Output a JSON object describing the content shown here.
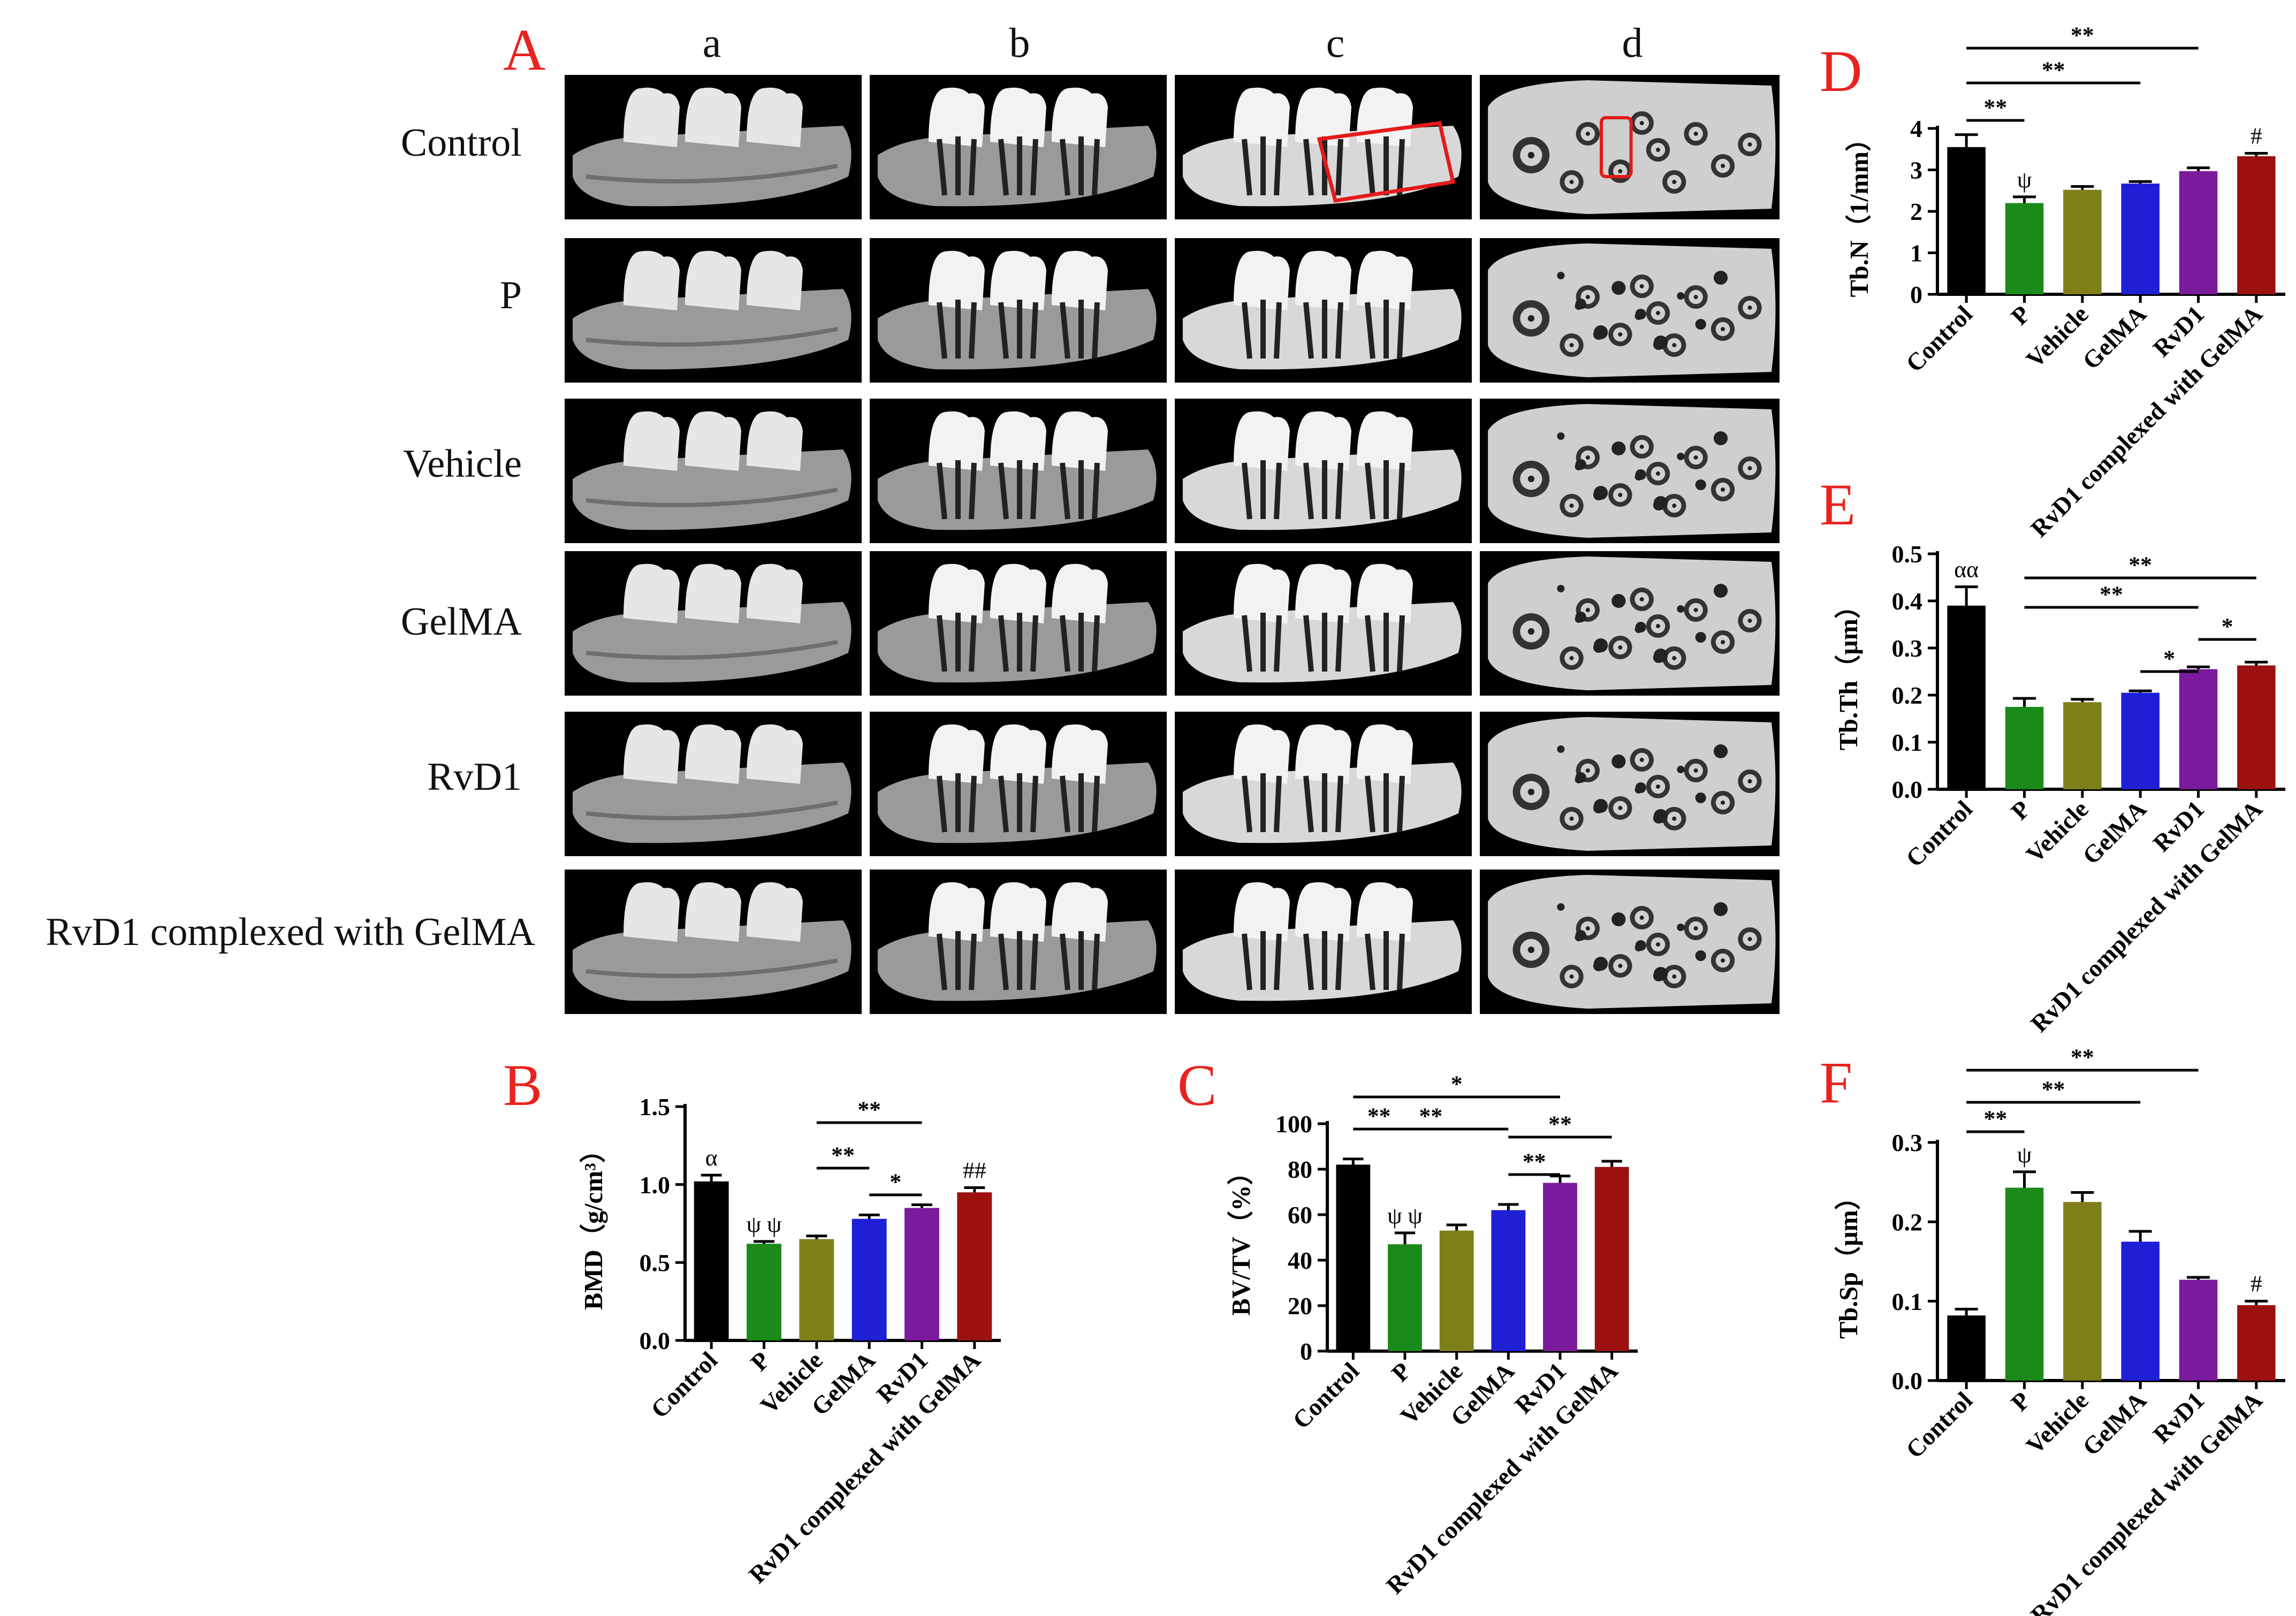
{
  "panel_a": {
    "letter": "A",
    "columns": [
      "a",
      "b",
      "c",
      "d"
    ],
    "rows": [
      "Control",
      "P",
      "Vehicle",
      "GelMA",
      "RvD1",
      "RvD1 complexed with GelMA"
    ]
  },
  "colors": {
    "Control": "#000000",
    "P": "#1a8a1a",
    "Vehicle": "#7f7f1a",
    "GelMA": "#1f1fd6",
    "RvD1": "#7a1a9c",
    "RvD1 complexed with GelMA": "#9c1010",
    "panel_letter": "#e8231f",
    "roi_box": "#e51a1a"
  },
  "chart_data": [
    {
      "id": "D",
      "letter": "D",
      "type": "bar",
      "categories": [
        "Control",
        "P",
        "Vehicle",
        "GelMA",
        "RvD1",
        "RvD1 complexed with GelMA"
      ],
      "values": [
        3.55,
        2.2,
        2.52,
        2.67,
        2.97,
        3.33
      ],
      "errors": [
        0.3,
        0.15,
        0.08,
        0.05,
        0.08,
        0.07
      ],
      "ylabel": "Tb.N（1/mm）",
      "ylim": [
        0,
        4
      ],
      "yticks": [
        "0",
        "1",
        "2",
        "3",
        "4"
      ],
      "yticks_values": [
        0,
        1,
        2,
        3,
        4
      ],
      "marks": [
        {
          "bar": 1,
          "text": "ψ"
        },
        {
          "bar": 5,
          "text": "#"
        }
      ],
      "brackets": [
        {
          "from": 0,
          "to": 1,
          "text": "**"
        },
        {
          "from": 0,
          "to": 3,
          "text": "**"
        },
        {
          "from": 0,
          "to": 4,
          "text": "**"
        }
      ]
    },
    {
      "id": "E",
      "letter": "E",
      "type": "bar",
      "categories": [
        "Control",
        "P",
        "Vehicle",
        "GelMA",
        "RvD1",
        "RvD1 complexed with GelMA"
      ],
      "values": [
        0.39,
        0.175,
        0.185,
        0.205,
        0.255,
        0.263
      ],
      "errors": [
        0.04,
        0.018,
        0.006,
        0.004,
        0.005,
        0.007
      ],
      "ylabel": "Tb.Th（μm）",
      "ylim": [
        0,
        0.5
      ],
      "yticks": [
        "0.0",
        "0.1",
        "0.2",
        "0.3",
        "0.4",
        "0.5"
      ],
      "yticks_values": [
        0,
        0.1,
        0.2,
        0.3,
        0.4,
        0.5
      ],
      "marks": [
        {
          "bar": 0,
          "text": "αα"
        }
      ],
      "brackets": [
        {
          "from": 1,
          "to": 5,
          "text": "**"
        },
        {
          "from": 1,
          "to": 4,
          "text": "**"
        },
        {
          "from": 4,
          "to": 5,
          "text": "*"
        },
        {
          "from": 3,
          "to": 4,
          "text": "*"
        }
      ]
    },
    {
      "id": "B",
      "letter": "B",
      "type": "bar",
      "categories": [
        "Control",
        "P",
        "Vehicle",
        "GelMA",
        "RvD1",
        "RvD1 complexed with GelMA"
      ],
      "values": [
        1.02,
        0.62,
        0.65,
        0.78,
        0.85,
        0.95
      ],
      "errors": [
        0.04,
        0.015,
        0.02,
        0.025,
        0.02,
        0.03
      ],
      "ylabel": "BMD（g/cm³）",
      "ylim": [
        0,
        1.5
      ],
      "yticks": [
        "0.0",
        "0.5",
        "1.0",
        "1.5"
      ],
      "yticks_values": [
        0,
        0.5,
        1.0,
        1.5
      ],
      "marks": [
        {
          "bar": 0,
          "text": "α"
        },
        {
          "bar": 1,
          "text": "ψ ψ"
        },
        {
          "bar": 5,
          "text": "##"
        }
      ],
      "brackets": [
        {
          "from": 3,
          "to": 4,
          "text": "*"
        },
        {
          "from": 2,
          "to": 3,
          "text": "**"
        },
        {
          "from": 2,
          "to": 4,
          "text": "**"
        }
      ]
    },
    {
      "id": "C",
      "letter": "C",
      "type": "bar",
      "categories": [
        "Control",
        "P",
        "Vehicle",
        "GelMA",
        "RvD1",
        "RvD1 complexed with GelMA"
      ],
      "values": [
        82,
        47,
        53,
        62,
        74,
        81
      ],
      "errors": [
        2.5,
        5,
        2.5,
        2.5,
        3,
        2.5
      ],
      "ylabel": "BV/TV（%）",
      "ylim": [
        0,
        100
      ],
      "yticks": [
        "0",
        "20",
        "40",
        "60",
        "80",
        "100"
      ],
      "yticks_values": [
        0,
        20,
        40,
        60,
        80,
        100
      ],
      "marks": [
        {
          "bar": 1,
          "text": "ψ ψ"
        }
      ],
      "brackets": [
        {
          "from": 0,
          "to": 1,
          "text": "**"
        },
        {
          "from": 0,
          "to": 3,
          "text": "**"
        },
        {
          "from": 0,
          "to": 4,
          "text": "*"
        },
        {
          "from": 3,
          "to": 4,
          "text": "**"
        },
        {
          "from": 3,
          "to": 5,
          "text": "**"
        }
      ]
    },
    {
      "id": "F",
      "letter": "F",
      "type": "bar",
      "categories": [
        "Control",
        "P",
        "Vehicle",
        "GelMA",
        "RvD1",
        "RvD1 complexed with GelMA"
      ],
      "values": [
        0.082,
        0.243,
        0.225,
        0.175,
        0.127,
        0.095
      ],
      "errors": [
        0.008,
        0.02,
        0.012,
        0.013,
        0.003,
        0.005
      ],
      "ylabel": "Tb.Sp（μm）",
      "ylim": [
        0,
        0.3
      ],
      "yticks": [
        "0.0",
        "0.1",
        "0.2",
        "0.3"
      ],
      "yticks_values": [
        0,
        0.1,
        0.2,
        0.3
      ],
      "marks": [
        {
          "bar": 1,
          "text": "ψ"
        },
        {
          "bar": 5,
          "text": "#"
        }
      ],
      "brackets": [
        {
          "from": 0,
          "to": 1,
          "text": "**"
        },
        {
          "from": 0,
          "to": 3,
          "text": "**"
        },
        {
          "from": 0,
          "to": 4,
          "text": "**"
        }
      ]
    }
  ]
}
